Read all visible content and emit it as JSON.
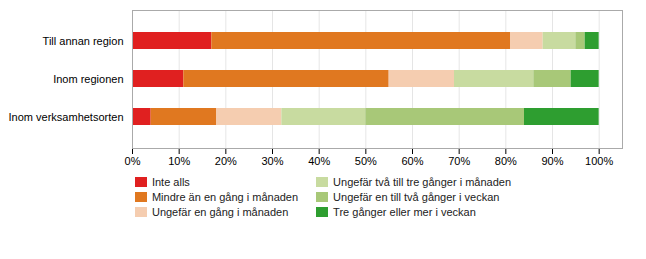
{
  "chart_data": {
    "type": "bar",
    "orientation": "horizontal",
    "stacked": true,
    "categories": [
      "Inom verksamhetsorten",
      "Inom regionen",
      "Till annan region"
    ],
    "series": [
      {
        "name": "Inte alls",
        "color": "#e02020",
        "values": [
          4,
          11,
          17
        ]
      },
      {
        "name": "Mindre än en gång i månaden",
        "color": "#e07820",
        "values": [
          14,
          44,
          64
        ]
      },
      {
        "name": "Ungefär en gång i månaden",
        "color": "#f5cdb0",
        "values": [
          14,
          14,
          7
        ]
      },
      {
        "name": "Ungefär två till tre gånger i månaden",
        "color": "#c8dba0",
        "values": [
          18,
          17,
          7
        ]
      },
      {
        "name": "Ungefär en till två gånger i veckan",
        "color": "#a8c878",
        "values": [
          34,
          8,
          2
        ]
      },
      {
        "name": "Tre gånger eller mer i veckan",
        "color": "#2e9e30",
        "values": [
          16,
          6,
          3
        ]
      }
    ],
    "xlim": [
      0,
      105
    ],
    "xticks": [
      {
        "value": 0,
        "label": "0%"
      },
      {
        "value": 10,
        "label": "10%"
      },
      {
        "value": 20,
        "label": "20%"
      },
      {
        "value": 30,
        "label": "30%"
      },
      {
        "value": 40,
        "label": "40%"
      },
      {
        "value": 50,
        "label": "50%"
      },
      {
        "value": 60,
        "label": "60%"
      },
      {
        "value": 70,
        "label": "70%"
      },
      {
        "value": 80,
        "label": "80%"
      },
      {
        "value": 90,
        "label": "90%"
      },
      {
        "value": 100,
        "label": "100%"
      }
    ],
    "grid": true,
    "legend": "bottom"
  }
}
